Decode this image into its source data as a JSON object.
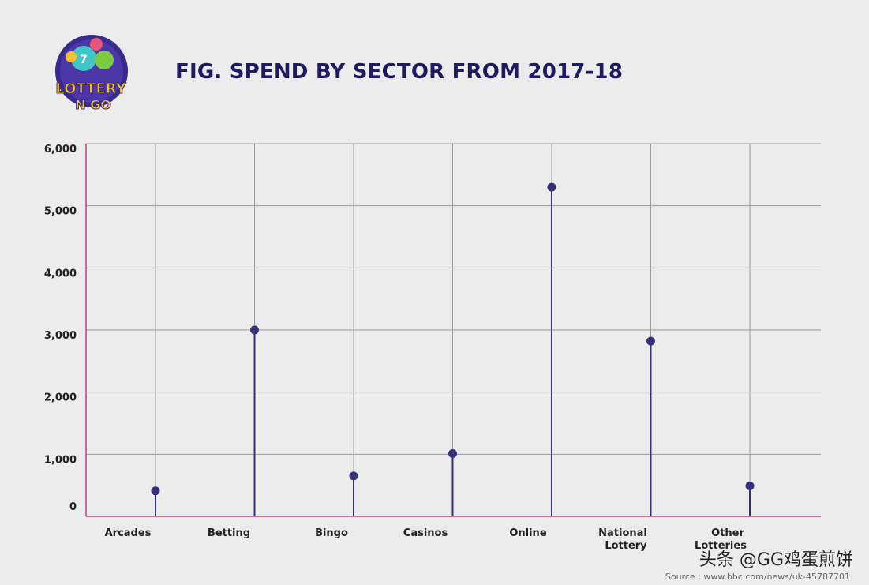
{
  "brand": {
    "logo_line1": "LOTTERY",
    "logo_line2": "N GO"
  },
  "chart_data": {
    "type": "lollipop",
    "title": "FIG. SPEND BY SECTOR FROM 2017-18",
    "categories": [
      "Arcades",
      "Betting",
      "Bingo",
      "Casinos",
      "Online",
      "National Lottery",
      "Other Lotteries"
    ],
    "category_lines": [
      [
        "Arcades"
      ],
      [
        "Betting"
      ],
      [
        "Bingo"
      ],
      [
        "Casinos"
      ],
      [
        "Online"
      ],
      [
        "National",
        "Lottery"
      ],
      [
        "Other",
        "Lotteries"
      ]
    ],
    "values": [
      410,
      3000,
      650,
      1010,
      5300,
      2820,
      490
    ],
    "ylim": [
      0,
      6000
    ],
    "yticks": [
      0,
      1000,
      2000,
      3000,
      4000,
      5000,
      6000
    ],
    "ytick_labels": [
      "0",
      "1,000",
      "2,000",
      "3,000",
      "4,000",
      "5,000",
      "6,000"
    ],
    "grid": true,
    "colors": {
      "stem": "#34317a",
      "marker": "#34317a",
      "axis": "#c2427f",
      "grid": "#9a9a9a"
    }
  },
  "footer": {
    "source": "Source : www.bbc.com/news/uk-45787701",
    "watermark": "头条 @GG鸡蛋煎饼"
  }
}
